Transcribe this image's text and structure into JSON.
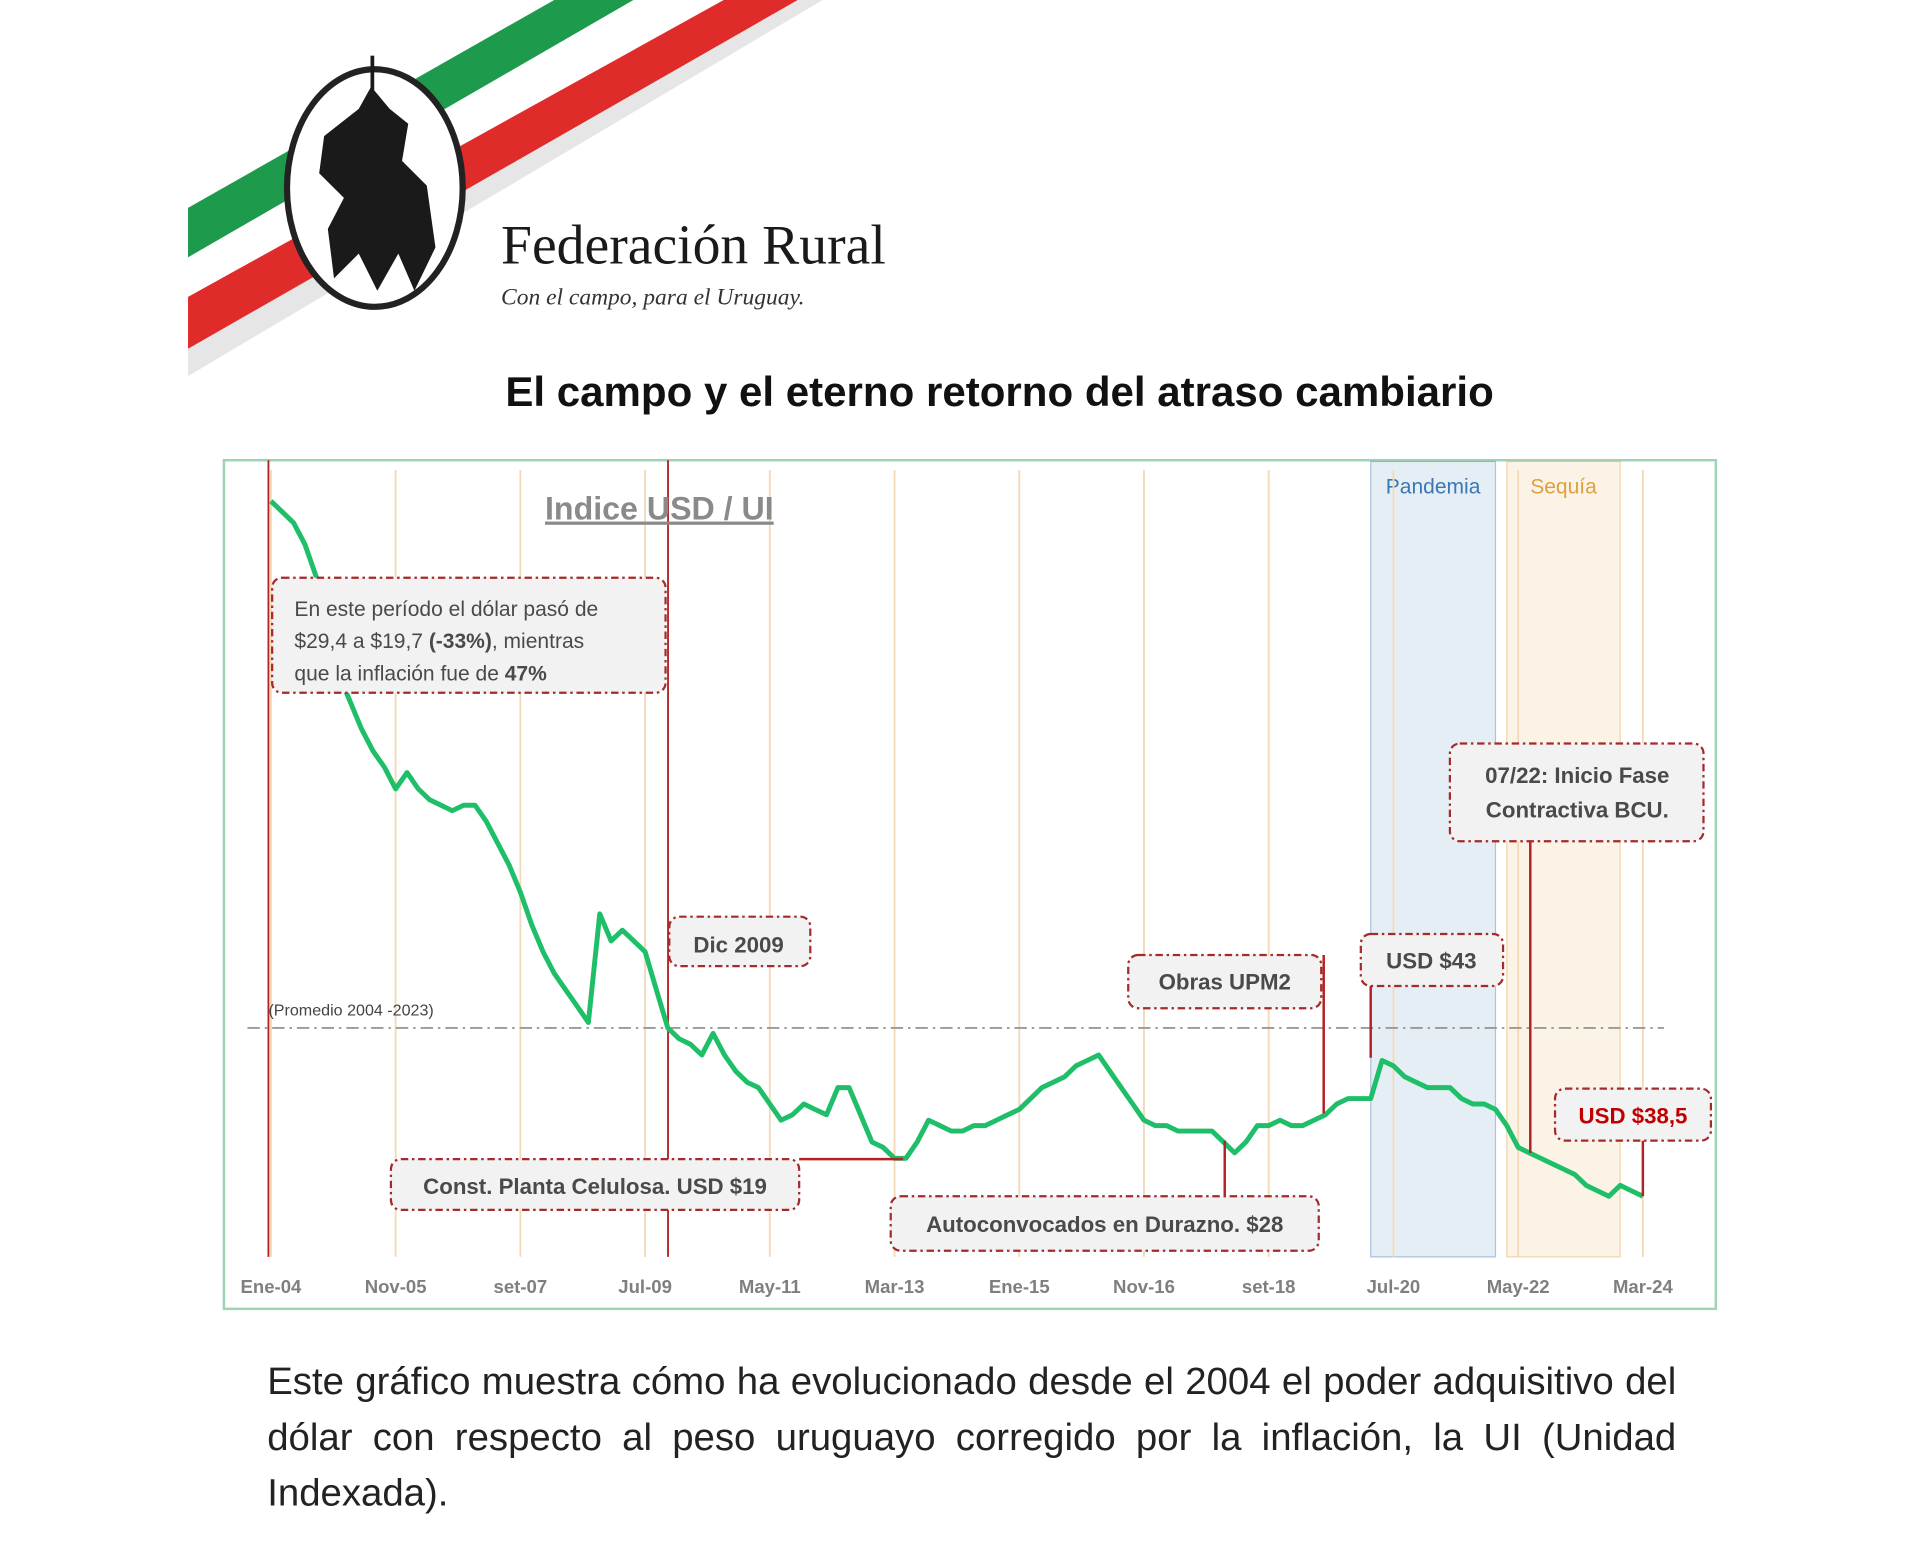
{
  "header": {
    "brand": "Federación Rural",
    "tagline": "Con el campo, para el Uruguay."
  },
  "headline": "El campo y el eterno retorno del atraso cambiario",
  "chart_data": {
    "type": "line",
    "title": "Indice USD / UI",
    "color": "#1fbf6a",
    "grid": true,
    "categories": [
      "Ene-04",
      null,
      null,
      null,
      null,
      null,
      null,
      null,
      null,
      null,
      null,
      "Nov-05",
      null,
      null,
      null,
      null,
      null,
      null,
      null,
      null,
      null,
      null,
      "set-07",
      null,
      null,
      null,
      null,
      null,
      null,
      null,
      null,
      null,
      null,
      "Jul-09",
      null,
      null,
      null,
      null,
      null,
      null,
      null,
      null,
      null,
      null,
      "May-11",
      null,
      null,
      null,
      null,
      null,
      null,
      null,
      null,
      null,
      null,
      "Mar-13",
      null,
      null,
      null,
      null,
      null,
      null,
      null,
      null,
      null,
      null,
      "Ene-15",
      null,
      null,
      null,
      null,
      null,
      null,
      null,
      null,
      null,
      null,
      "Nov-16",
      null,
      null,
      null,
      null,
      null,
      null,
      null,
      null,
      null,
      null,
      "set-18",
      null,
      null,
      null,
      null,
      null,
      null,
      null,
      null,
      null,
      null,
      "Jul-20",
      null,
      null,
      null,
      null,
      null,
      null,
      null,
      null,
      null,
      null,
      "May-22",
      null,
      null,
      null,
      null,
      null,
      null,
      null,
      null,
      null,
      null,
      "Mar-24"
    ],
    "values": [
      29.4,
      29.2,
      29.0,
      28.6,
      28.0,
      27.1,
      26.2,
      25.7,
      25.2,
      24.8,
      24.5,
      24.1,
      24.4,
      24.1,
      23.9,
      23.8,
      23.7,
      23.8,
      23.8,
      23.5,
      23.1,
      22.7,
      22.2,
      21.6,
      21.1,
      20.7,
      20.4,
      20.1,
      19.8,
      21.8,
      21.3,
      21.5,
      21.3,
      21.1,
      20.4,
      19.7,
      19.5,
      19.4,
      19.2,
      19.6,
      19.2,
      18.9,
      18.7,
      18.6,
      18.3,
      18.0,
      18.1,
      18.3,
      18.2,
      18.1,
      18.6,
      18.6,
      18.1,
      17.6,
      17.5,
      17.3,
      17.3,
      17.6,
      18.0,
      17.9,
      17.8,
      17.8,
      17.9,
      17.9,
      18.0,
      18.1,
      18.2,
      18.4,
      18.6,
      18.7,
      18.8,
      19.0,
      19.1,
      19.2,
      18.9,
      18.6,
      18.3,
      18.0,
      17.9,
      17.9,
      17.8,
      17.8,
      17.8,
      17.8,
      17.6,
      17.4,
      17.6,
      17.9,
      17.9,
      18.0,
      17.9,
      17.9,
      18.0,
      18.1,
      18.3,
      18.4,
      18.4,
      18.4,
      19.1,
      19.0,
      18.8,
      18.7,
      18.6,
      18.6,
      18.6,
      18.4,
      18.3,
      18.3,
      18.2,
      17.9,
      17.5,
      17.4,
      17.3,
      17.2,
      17.1,
      17.0,
      16.8,
      16.7,
      16.6,
      16.8,
      16.7,
      16.6
    ],
    "reference_line": {
      "label": "(Promedio 2004 -2023)",
      "value": 19.7
    },
    "bands": [
      {
        "label": "Pandemia",
        "from": 97,
        "to": 108,
        "color": "#3a78b5"
      },
      {
        "label": "Sequía",
        "from": 109,
        "to": 119,
        "color": "#e0a040"
      }
    ],
    "annotations": [
      {
        "lines": [
          [
            {
              "text": "En este período el dólar pasó de"
            }
          ],
          [
            {
              "text": "$29,4 a $19,7 "
            },
            {
              "text": "(-33%)",
              "bold": true
            },
            {
              "text": ", mientras"
            }
          ],
          [
            {
              "text": "que la inflación fue de "
            },
            {
              "text": "47%",
              "bold": true
            }
          ]
        ]
      },
      {
        "lines": [
          [
            {
              "text": "Dic 2009",
              "bold": true
            }
          ]
        ]
      },
      {
        "lines": [
          [
            {
              "text": "Const. Planta Celulosa. USD $19",
              "bold": true
            }
          ]
        ]
      },
      {
        "lines": [
          [
            {
              "text": "Autoconvocados en Durazno. $28",
              "bold": true
            }
          ]
        ]
      },
      {
        "lines": [
          [
            {
              "text": "Obras UPM2",
              "bold": true
            }
          ]
        ]
      },
      {
        "lines": [
          [
            {
              "text": "USD $43",
              "bold": true
            }
          ]
        ]
      },
      {
        "lines": [
          [
            {
              "text": "07/22: Inicio Fase",
              "bold": true
            }
          ],
          [
            {
              "text": "Contractiva BCU.",
              "bold": true
            }
          ]
        ]
      },
      {
        "lines": [
          [
            {
              "text": "USD $38,5",
              "bold": true
            }
          ]
        ],
        "color": "#c00000"
      }
    ]
  },
  "body": "Este gráfico muestra cómo ha evolucionado desde el 2004 el poder adquisitivo del dólar con respecto al peso uruguayo corregido por la inflación, la UI (Unidad Indexada)."
}
